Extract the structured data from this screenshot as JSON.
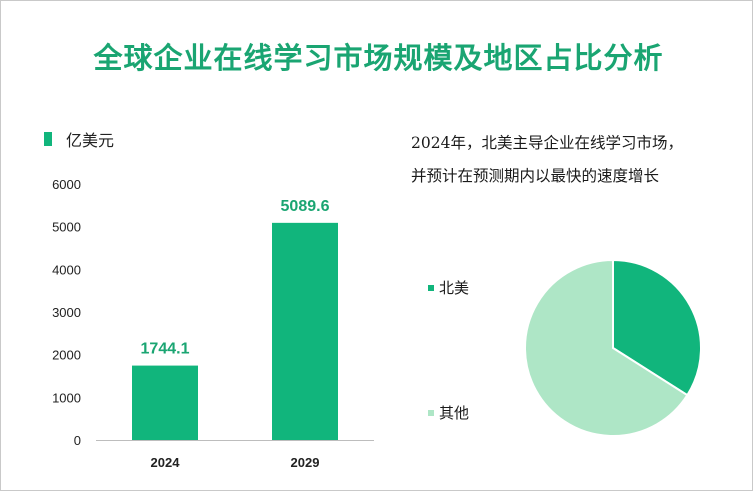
{
  "title": "全球企业在线学习市场规模及地区占比分析",
  "legend_unit": "亿美元",
  "note_lines": [
    "2024年，北美主导企业在线学习市场，",
    "并预计在预测期内以最快的速度增长"
  ],
  "colors": {
    "bar": "#11b57c",
    "pie_na": "#11b57c",
    "pie_other": "#aee6c6",
    "title": "#1aa572",
    "label": "#1aa572"
  },
  "chart_data": [
    {
      "type": "bar",
      "title": "",
      "unit": "亿美元",
      "categories": [
        "2024",
        "2029"
      ],
      "values": [
        1744.1,
        5089.6
      ],
      "value_labels": [
        "1744.1",
        "5089.6"
      ],
      "yticks": [
        0,
        1000,
        2000,
        3000,
        4000,
        5000,
        6000
      ],
      "ylim": [
        0,
        6000
      ],
      "grid": false
    },
    {
      "type": "pie",
      "labels": [
        "北美",
        "其他"
      ],
      "values": [
        34,
        66
      ],
      "legend": "left"
    }
  ]
}
